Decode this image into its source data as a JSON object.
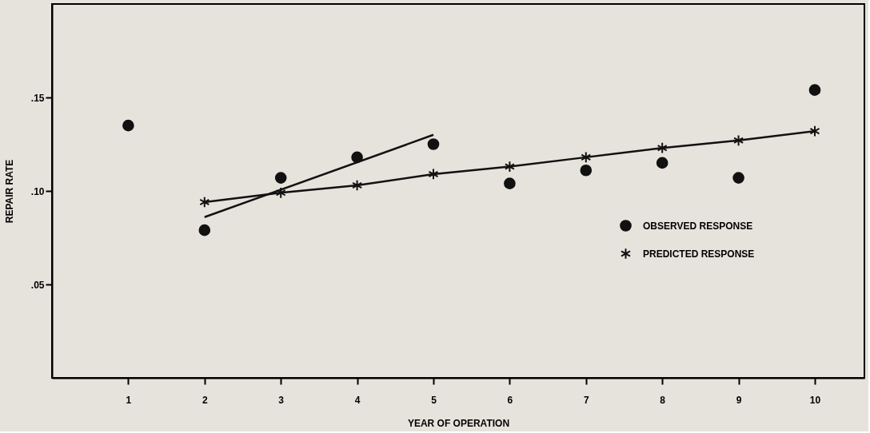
{
  "chart_data": {
    "type": "scatter",
    "xlabel": "YEAR OF OPERATION",
    "ylabel": "REPAIR RATE",
    "xlim": [
      0,
      10.65
    ],
    "xticks": [
      1,
      2,
      3,
      4,
      5,
      6,
      7,
      8,
      9,
      10
    ],
    "ylim": [
      0,
      0.2
    ],
    "yticks": [
      {
        "value": 0.05,
        "label": ".05"
      },
      {
        "value": 0.1,
        "label": ".10"
      },
      {
        "value": 0.15,
        "label": ".15"
      }
    ],
    "grid": false,
    "legend": "right",
    "series": [
      {
        "name": "OBSERVED RESPONSE",
        "type": "scatter",
        "marker": "circle",
        "color": "#111111",
        "x": [
          1,
          2,
          3,
          4,
          5,
          6,
          7,
          8,
          9,
          10
        ],
        "values": [
          0.135,
          0.079,
          0.107,
          0.118,
          0.125,
          0.104,
          0.111,
          0.115,
          0.107,
          0.154
        ]
      },
      {
        "name": "PREDICTED RESPONSE",
        "type": "line",
        "marker": "cross",
        "color": "#111111",
        "x": [
          2,
          3,
          4,
          5,
          6,
          7,
          8,
          9,
          10
        ],
        "values": [
          0.094,
          0.099,
          0.103,
          0.109,
          0.113,
          0.118,
          0.123,
          0.127,
          0.132
        ]
      },
      {
        "type": "line",
        "marker": "none",
        "color": "#111111",
        "x": [
          2,
          5
        ],
        "values": [
          0.086,
          0.13
        ]
      }
    ]
  }
}
